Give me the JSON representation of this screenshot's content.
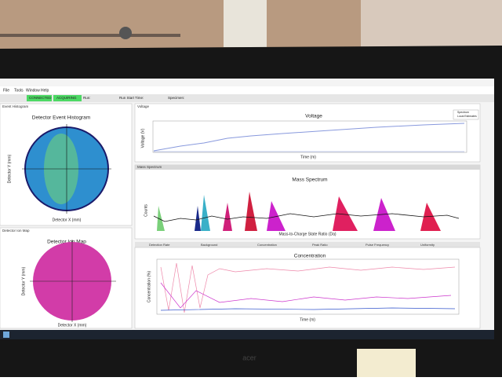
{
  "menu": [
    "File",
    "Tools",
    "Window",
    "Help"
  ],
  "status": {
    "connected": "CONNECTED",
    "acquiring": "ACQUIRING",
    "run": "Run:",
    "run_start": "Run Start Time:",
    "specimen": "Specimen:"
  },
  "histogram": {
    "tab": "Event Histogram",
    "title": "Detector Event Histogram",
    "x_label": "Detector X (mm)",
    "y_label": "Detector Y (mm)"
  },
  "ion_map": {
    "tab": "Detector Ion Map",
    "title": "Detector Ion Map",
    "x_label": "Detector X (mm)",
    "y_label": "Detector Y (mm)"
  },
  "voltage": {
    "tab": "Voltage",
    "title": "Voltage",
    "x_label": "Time (m)",
    "y_label": "Voltage (V)",
    "legend": [
      "Spectrum",
      "Local Estimates"
    ]
  },
  "mass_spectrum": {
    "tab": "Mass Spectrum",
    "title": "Mass Spectrum",
    "x_label": "Mass-to-Charge State Ratio (Da)",
    "y_label": "Counts"
  },
  "tabs": [
    "Detection Rate",
    "Background",
    "Concentration",
    "Peak Ratio",
    "Pulse Frequency",
    "Uniformity"
  ],
  "concentration": {
    "title": "Concentration",
    "x_label": "Time (m)",
    "y_label": "Concentration (%)"
  },
  "bezel": {
    "brand": "acer"
  }
}
